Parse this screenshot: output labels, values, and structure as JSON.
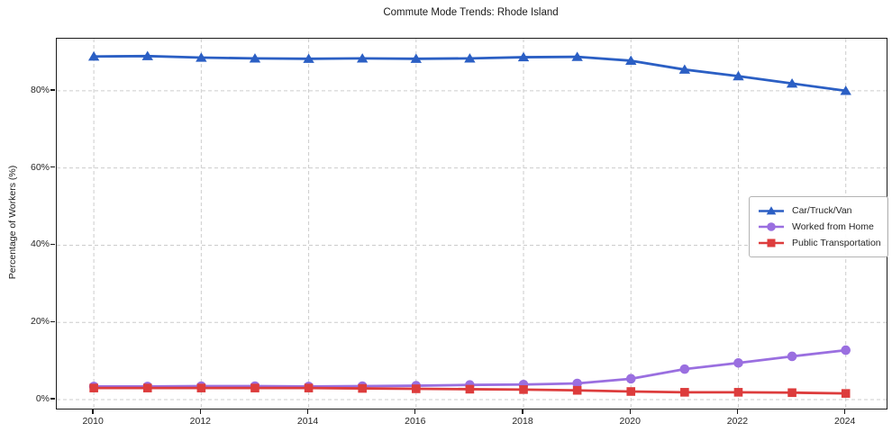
{
  "chart_data": {
    "type": "line",
    "title": "Commute Mode Trends: Rhode Island",
    "xlabel": "",
    "ylabel": "Percentage of Workers (%)",
    "x": [
      2010,
      2011,
      2012,
      2013,
      2014,
      2015,
      2016,
      2017,
      2018,
      2019,
      2020,
      2021,
      2022,
      2023,
      2024
    ],
    "x_tick_years": [
      2010,
      2012,
      2014,
      2016,
      2018,
      2020,
      2022,
      2024
    ],
    "x_tick_labels": [
      "2010",
      "2012",
      "2014",
      "2016",
      "2018",
      "2020",
      "2022",
      "2024"
    ],
    "y_tick_values": [
      0,
      20,
      40,
      60,
      80
    ],
    "y_tick_labels": [
      "0%",
      "20%",
      "40%",
      "60%",
      "80%"
    ],
    "xlim": [
      2009.31,
      2024.76
    ],
    "ylim": [
      -2.33,
      93.5
    ],
    "grid": true,
    "grid_style": "dashed",
    "legend_position": "center right",
    "series": [
      {
        "name": "Car/Truck/Van",
        "marker": "triangle",
        "color": "#2b5fc4",
        "values": [
          88.9,
          89.0,
          88.6,
          88.4,
          88.3,
          88.4,
          88.3,
          88.4,
          88.7,
          88.8,
          87.8,
          85.5,
          83.8,
          81.9,
          80.0
        ]
      },
      {
        "name": "Worked from Home",
        "marker": "circle",
        "color": "#9a6fe0",
        "values": [
          3.4,
          3.4,
          3.5,
          3.5,
          3.4,
          3.5,
          3.6,
          3.8,
          3.9,
          4.2,
          5.4,
          7.9,
          9.5,
          11.2,
          12.8
        ]
      },
      {
        "name": "Public Transportation",
        "marker": "square",
        "color": "#dd3c3c",
        "values": [
          3.0,
          3.0,
          3.0,
          3.0,
          3.0,
          2.9,
          2.8,
          2.7,
          2.6,
          2.4,
          2.1,
          1.9,
          1.9,
          1.8,
          1.6
        ]
      }
    ],
    "colors": {
      "frame": "#1a1a1a",
      "gridline": "#cccccc",
      "text": "#262626",
      "legend_border": "#b3b3b3",
      "background": "#ffffff"
    }
  }
}
